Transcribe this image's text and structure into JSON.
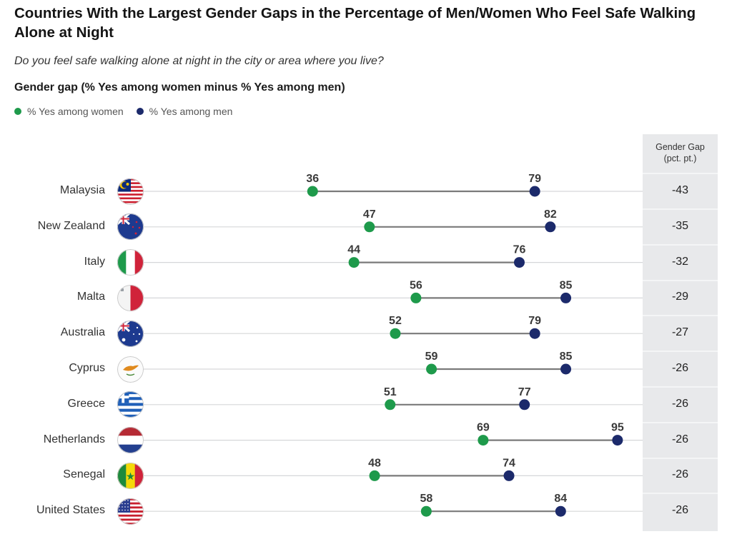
{
  "header": {
    "title": "Countries With the Largest Gender Gaps in the Percentage of Men/Women Who Feel Safe Walking Alone at Night",
    "subtitle": "Do you feel safe walking alone at night in the city or area where you live?",
    "chart_title": "Gender gap (% Yes among women minus % Yes among men)"
  },
  "legend": [
    {
      "label": "% Yes among women",
      "color": "#1e9a4b"
    },
    {
      "label": "% Yes among men",
      "color": "#1c2a6b"
    }
  ],
  "gap_column_header": [
    "Gender Gap",
    "(pct. pt.)"
  ],
  "chart_data": {
    "type": "dumbbell",
    "title": "Countries With the Largest Gender Gaps in the Percentage of Men/Women Who Feel Safe Walking Alone at Night",
    "subtitle": "Do you feel safe walking alone at night in the city or area where you live?",
    "xlabel": "",
    "ylabel": "",
    "xlim": [
      0,
      100
    ],
    "grid": false,
    "legend_position": "top-left",
    "categories": [
      "Malaysia",
      "New Zealand",
      "Italy",
      "Malta",
      "Australia",
      "Cyprus",
      "Greece",
      "Netherlands",
      "Senegal",
      "United States"
    ],
    "series": [
      {
        "name": "% Yes among women",
        "color": "#1e9a4b",
        "values": [
          36,
          47,
          44,
          56,
          52,
          59,
          51,
          69,
          48,
          58
        ]
      },
      {
        "name": "% Yes among men",
        "color": "#1c2a6b",
        "values": [
          79,
          82,
          76,
          85,
          79,
          85,
          77,
          95,
          74,
          84
        ]
      }
    ],
    "gender_gap": [
      -43,
      -35,
      -32,
      -29,
      -27,
      -26,
      -26,
      -26,
      -26,
      -26
    ]
  },
  "flags": [
    "malaysia-flag",
    "new-zealand-flag",
    "italy-flag",
    "malta-flag",
    "australia-flag",
    "cyprus-flag",
    "greece-flag",
    "netherlands-flag",
    "senegal-flag",
    "united-states-flag"
  ]
}
